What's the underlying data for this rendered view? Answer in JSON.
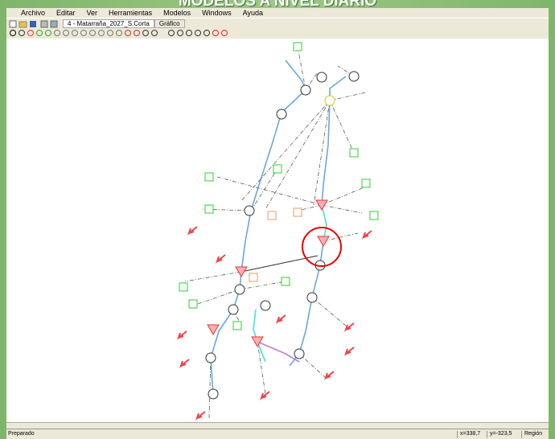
{
  "banner": {
    "title": "MODELOS A NIVEL DIARIO"
  },
  "menu": [
    "Archivo",
    "Editar",
    "Ver",
    "Herramientas",
    "Modelos",
    "Windows",
    "Ayuda"
  ],
  "tab": {
    "document": "4 - Matarraña_2027_S.Corta",
    "view": "Gráfico"
  },
  "status": {
    "message": "Preparado",
    "x": "x=338,7",
    "y": "y=-323,5",
    "mode": "Región"
  }
}
